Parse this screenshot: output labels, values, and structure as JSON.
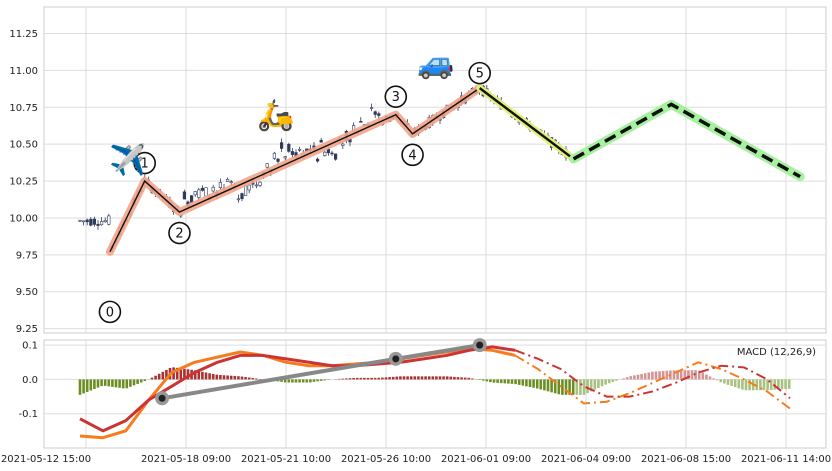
{
  "chart_data": [
    {
      "type": "candlestick",
      "title": "",
      "xlabel": "",
      "ylabel": "",
      "ylim": [
        9.22,
        11.43
      ],
      "y_ticks": [
        "9.25",
        "9.50",
        "9.75",
        "10.00",
        "10.25",
        "10.50",
        "10.75",
        "11.00",
        "11.25"
      ],
      "x_ticks": [
        "2021-05-12 15:00",
        "2021-05-18 09:00",
        "2021-05-21 10:00",
        "2021-05-26 10:00",
        "2021-06-01 09:00",
        "2021-06-04 09:00",
        "2021-06-08 15:00",
        "2021-06-11 14:00"
      ],
      "grid": true,
      "wave_points": [
        {
          "label": "0",
          "date": "2021-05-14",
          "price": 9.77
        },
        {
          "label": "1",
          "date": "2021-05-16",
          "price": 10.25
        },
        {
          "label": "2",
          "date": "2021-05-18",
          "price": 10.04
        },
        {
          "label": "3",
          "date": "2021-05-27",
          "price": 10.7
        },
        {
          "label": "4",
          "date": "2021-05-28",
          "price": 10.57
        },
        {
          "label": "5",
          "date": "2021-06-01",
          "price": 10.88
        }
      ],
      "correction": [
        {
          "date": "2021-06-01",
          "price": 10.88
        },
        {
          "date": "2021-06-04",
          "price": 10.4
        }
      ],
      "projection": [
        {
          "date": "2021-06-04",
          "price": 10.4
        },
        {
          "date": "2021-06-08",
          "price": 10.77
        },
        {
          "date": "2021-06-12",
          "price": 10.28
        }
      ],
      "emojis": [
        {
          "name": "airplane-icon",
          "glyph": "✈️"
        },
        {
          "name": "scooter-icon",
          "glyph": "🛵"
        },
        {
          "name": "car-icon",
          "glyph": "🚙"
        }
      ],
      "colors": {
        "wave_band": "#f2a48a",
        "correction_band": "#e2ef7a",
        "projection_band": "#a7f0a0",
        "candle_up": "#ffffff",
        "candle_down": "#2e3a59"
      }
    },
    {
      "type": "line+bar",
      "title": "",
      "legend": "MACD (12,26,9)",
      "legend_position": "top-right",
      "ylim": [
        -0.2,
        0.115
      ],
      "y_ticks": [
        "0.1",
        "0.0",
        "-0.1"
      ],
      "series": [
        {
          "name": "",
          "color": "#f57c1f",
          "values": [
            -0.165,
            -0.17,
            -0.15,
            -0.06,
            0.02,
            0.05,
            0.065,
            0.08,
            0.07,
            0.05,
            0.04,
            0.04,
            0.045,
            0.05,
            0.06,
            0.07,
            0.08,
            0.09,
            0.085,
            0.07,
            0.03,
            -0.02,
            -0.07,
            -0.065,
            -0.04,
            -0.01,
            0.02,
            0.05,
            0.03,
            0.0,
            -0.035,
            -0.085
          ]
        },
        {
          "name": "",
          "color": "#cc3333",
          "values": [
            -0.115,
            -0.15,
            -0.12,
            -0.06,
            -0.02,
            0.02,
            0.05,
            0.07,
            0.07,
            0.06,
            0.05,
            0.04,
            0.04,
            0.045,
            0.05,
            0.06,
            0.07,
            0.085,
            0.095,
            0.085,
            0.06,
            0.03,
            -0.02,
            -0.05,
            -0.05,
            -0.035,
            -0.01,
            0.02,
            0.04,
            0.035,
            0.0,
            -0.055
          ]
        }
      ],
      "histogram": {
        "positive_color": "#a83232",
        "negative_color": "#6b8e23",
        "projected_positive_color": "#d49494",
        "projected_negative_color": "#a8c080"
      },
      "trend_points": [
        {
          "date": "2021-05-17",
          "value": -0.055
        },
        {
          "date": "2021-05-27",
          "value": 0.06
        },
        {
          "date": "2021-06-01",
          "value": 0.1
        }
      ]
    }
  ]
}
